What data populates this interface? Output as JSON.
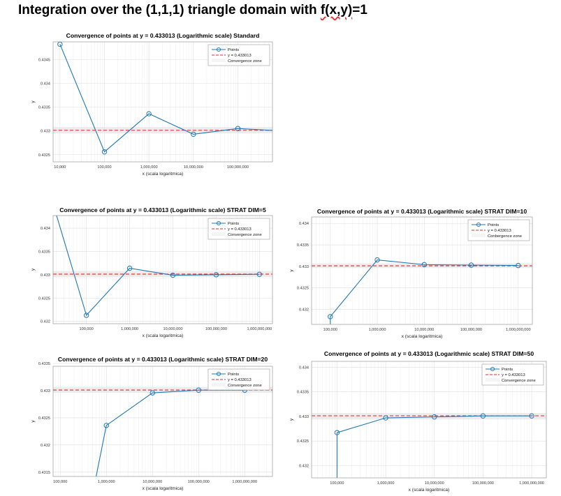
{
  "page": {
    "title_before": "Integration over the (1,1,1) triangle domain with ",
    "title_underlined": "f(x,y)",
    "title_after": "=1"
  },
  "colors": {
    "points": "#1f77b4",
    "reference": "#e8262a",
    "zone": "#e6e6e6",
    "grid": "#dddddd"
  },
  "chart_data": [
    {
      "type": "line",
      "title": "Convergence of points at y = 0.433013 (Logarithmic scale) Standard",
      "xlabel": "x (scala logaritmica)",
      "ylabel": "y",
      "xscale": "log",
      "xlim": [
        7000,
        600000000
      ],
      "ylim": [
        0.43235,
        0.43487
      ],
      "xticks": [
        10000,
        100000,
        1000000,
        10000000,
        100000000
      ],
      "xticklabels": [
        "10,000",
        "100,000",
        "1,000,000",
        "10,000,000",
        "100,000,000"
      ],
      "yticks": [
        0.4325,
        0.433,
        0.4335,
        0.434,
        0.4345
      ],
      "yticklabels": [
        "0.4325",
        "0.433",
        "0.4335",
        "0.434",
        "0.4345"
      ],
      "series": [
        {
          "name": "Points",
          "x": [
            10000,
            100000,
            1000000,
            10000000,
            100000000,
            600000000
          ],
          "y": [
            0.43482,
            0.43256,
            0.43336,
            0.43293,
            0.43305,
            0.43301
          ],
          "markers": [
            true,
            true,
            true,
            true,
            true,
            false
          ]
        }
      ],
      "reference": {
        "name": "y = 0.433013",
        "value": 0.433013
      },
      "zone": {
        "name": "Convergence zone",
        "range": [
          0.43295,
          0.43308
        ]
      },
      "legend": [
        "Points",
        "y = 0.433013",
        "Convergence zone"
      ],
      "legend_position": "top-right",
      "grid": true
    },
    {
      "type": "line",
      "title": "Convergence of points at y = 0.433013 (Logarithmic scale) STRAT DIM=5",
      "xlabel": "x (scala logaritmica)",
      "ylabel": "y",
      "xscale": "log",
      "xlim": [
        17000,
        2000000000
      ],
      "ylim": [
        0.43195,
        0.43427
      ],
      "xticks": [
        100000,
        1000000,
        10000000,
        100000000,
        1000000000
      ],
      "xticklabels": [
        "100,000",
        "1,000,000",
        "10,000,000",
        "100,000,000",
        "1,000,000,000"
      ],
      "yticks": [
        0.432,
        0.4325,
        0.433,
        0.4335,
        0.434
      ],
      "yticklabels": [
        "0.432",
        "0.4325",
        "0.433",
        "0.4335",
        "0.434"
      ],
      "series": [
        {
          "name": "Points",
          "x": [
            20000,
            100000,
            1000000,
            10000000,
            100000000,
            1000000000
          ],
          "y": [
            0.4343,
            0.43213,
            0.43314,
            0.43299,
            0.433,
            0.43301
          ],
          "markers": [
            false,
            true,
            true,
            true,
            true,
            true
          ]
        }
      ],
      "reference": {
        "name": "y = 0.433013",
        "value": 0.433013
      },
      "zone": {
        "name": "Convergence zone",
        "range": [
          0.43295,
          0.43308
        ]
      },
      "legend": [
        "Points",
        "y = 0.433013",
        "Convergence zone"
      ],
      "legend_position": "top-right",
      "grid": true
    },
    {
      "type": "line",
      "title": "Convergence of points at y = 0.433013 (Logarithmic scale) STRAT DIM=10",
      "xlabel": "x (scala logaritmica)",
      "ylabel": "y",
      "xscale": "log",
      "xlim": [
        40000,
        2000000000
      ],
      "ylim": [
        0.43165,
        0.43415
      ],
      "xticks": [
        100000,
        1000000,
        10000000,
        100000000,
        1000000000
      ],
      "xticklabels": [
        "100,000",
        "1,000,000",
        "10,000,000",
        "100,000,000",
        "1,000,000,000"
      ],
      "yticks": [
        0.432,
        0.4325,
        0.433,
        0.4335,
        0.434
      ],
      "yticklabels": [
        "0.432",
        "0.4325",
        "0.433",
        "0.4335",
        "0.434"
      ],
      "series": [
        {
          "name": "Points",
          "x": [
            100000,
            100000,
            1000000,
            10000000,
            100000000,
            1000000000
          ],
          "y": [
            0.43165,
            0.43183,
            0.43315,
            0.43304,
            0.43303,
            0.43302
          ],
          "markers": [
            false,
            true,
            true,
            true,
            true,
            true
          ]
        }
      ],
      "reference": {
        "name": "y = 0.433013",
        "value": 0.433013
      },
      "zone": {
        "name": "Conbergence zone",
        "range": [
          0.43296,
          0.43307
        ]
      },
      "legend": [
        "Points",
        "y = 0.433013",
        "Conbergence zone"
      ],
      "legend_position": "top-right",
      "grid": true
    },
    {
      "type": "line",
      "title": "Convergence of points at y = 0.433013 (Logarithmic scale) STRAT DIM=20",
      "xlabel": "x (scala logaritmica)",
      "ylabel": "y",
      "xscale": "log",
      "xlim": [
        70000,
        4000000000
      ],
      "ylim": [
        0.43142,
        0.43345
      ],
      "xticks": [
        100000,
        1000000,
        10000000,
        100000000,
        1000000000
      ],
      "xticklabels": [
        "100,000",
        "1,000,000",
        "10,000,000",
        "100,000,000",
        "1,000,000,000"
      ],
      "yticks": [
        0.4315,
        0.432,
        0.4325,
        0.433,
        0.4335
      ],
      "yticklabels": [
        "0.4315",
        "0.432",
        "0.4325",
        "0.433",
        "0.4335"
      ],
      "series": [
        {
          "name": "Points",
          "x": [
            600000,
            1000000,
            10000000,
            100000000,
            1000000000
          ],
          "y": [
            0.43142,
            0.43236,
            0.43296,
            0.43301,
            0.43301
          ],
          "markers": [
            false,
            true,
            true,
            true,
            true
          ]
        }
      ],
      "reference": {
        "name": "y = 0.433013",
        "value": 0.433013
      },
      "zone": {
        "name": "Convergence zone",
        "range": [
          0.43296,
          0.43307
        ]
      },
      "legend": [
        "Points",
        "y = 0.433013",
        "Convergence zone"
      ],
      "legend_position": "top-right",
      "grid": true
    },
    {
      "type": "line",
      "title": "Convergence of points at y = 0.433013 (Logarithmic scale) STRAT DIM=50",
      "xlabel": "x (scala logaritmica)",
      "ylabel": "y",
      "xscale": "log",
      "xlim": [
        30000,
        2000000000
      ],
      "ylim": [
        0.43175,
        0.43412
      ],
      "xticks": [
        100000,
        1000000,
        10000000,
        100000000,
        1000000000
      ],
      "xticklabels": [
        "100,000",
        "1,000,000",
        "10,000,000",
        "100,000,000",
        "1,000,000,000"
      ],
      "yticks": [
        0.432,
        0.4325,
        0.433,
        0.4335,
        0.434
      ],
      "yticklabels": [
        "0.432",
        "0.4325",
        "0.433",
        "0.4335",
        "0.434"
      ],
      "series": [
        {
          "name": "Points",
          "x": [
            100000,
            100000,
            1000000,
            10000000,
            100000000,
            1000000000
          ],
          "y": [
            0.43175,
            0.43267,
            0.43297,
            0.43299,
            0.43301,
            0.43301
          ],
          "markers": [
            false,
            true,
            true,
            true,
            true,
            true
          ]
        }
      ],
      "reference": {
        "name": "y = 0.433013",
        "value": 0.433013
      },
      "zone": {
        "name": "Convergence zone",
        "range": [
          0.43294,
          0.43307
        ]
      },
      "legend": [
        "Points",
        "y = 0.433013",
        "Convergence zone"
      ],
      "legend_position": "top-right",
      "grid": true
    }
  ]
}
